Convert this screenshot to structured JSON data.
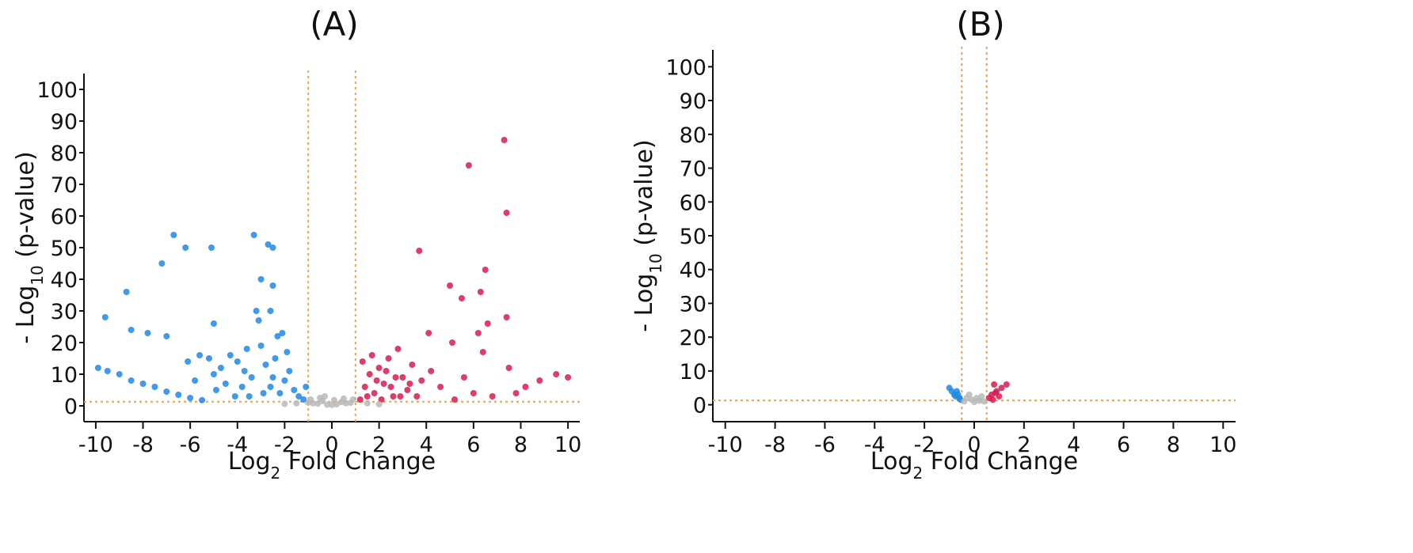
{
  "colors": {
    "up": "#d81b50",
    "down": "#1e88e5",
    "ns": "#b8b8b8",
    "threshold": "#f5a04a",
    "axis": "#111111"
  },
  "chart_data": [
    {
      "type": "scatter",
      "title": "(A)",
      "xlabel": "Log2 Fold Change",
      "ylabel": "- Log10 (p-value)",
      "xlim": [
        -10.5,
        10.5
      ],
      "ylim": [
        -5,
        105
      ],
      "xticks": [
        -10,
        -8,
        -6,
        -4,
        -2,
        0,
        2,
        4,
        6,
        8,
        10
      ],
      "yticks": [
        0,
        10,
        20,
        30,
        40,
        50,
        60,
        70,
        80,
        90,
        100
      ],
      "thresholds": {
        "x": [
          -1,
          1
        ],
        "y": 1.3
      },
      "series": [
        {
          "key": "down",
          "points": [
            [
              -9.6,
              28
            ],
            [
              -8.7,
              36
            ],
            [
              -8.5,
              24
            ],
            [
              -7.8,
              23
            ],
            [
              -7.2,
              45
            ],
            [
              -7.0,
              22
            ],
            [
              -6.7,
              54
            ],
            [
              -6.2,
              50
            ],
            [
              -5.1,
              50
            ],
            [
              -5.0,
              26
            ],
            [
              -3.3,
              54
            ],
            [
              -3.0,
              40
            ],
            [
              -2.7,
              51
            ],
            [
              -2.5,
              50
            ],
            [
              -2.5,
              38
            ],
            [
              -3.2,
              30
            ],
            [
              -3.1,
              27
            ],
            [
              -2.6,
              30
            ],
            [
              -2.3,
              22
            ],
            [
              -2.1,
              23
            ],
            [
              -9.9,
              12
            ],
            [
              -9.5,
              11
            ],
            [
              -9.0,
              10
            ],
            [
              -8.5,
              8
            ],
            [
              -8.0,
              7
            ],
            [
              -7.5,
              6
            ],
            [
              -7.0,
              4.5
            ],
            [
              -6.5,
              3.5
            ],
            [
              -6.0,
              2.5
            ],
            [
              -5.5,
              1.8
            ],
            [
              -5.2,
              15
            ],
            [
              -5.0,
              10
            ],
            [
              -4.7,
              12
            ],
            [
              -4.5,
              7
            ],
            [
              -4.3,
              16
            ],
            [
              -4.0,
              14
            ],
            [
              -3.8,
              6
            ],
            [
              -3.6,
              18
            ],
            [
              -3.4,
              9
            ],
            [
              -3.0,
              19
            ],
            [
              -2.8,
              13
            ],
            [
              -2.6,
              6
            ],
            [
              -2.4,
              15
            ],
            [
              -2.2,
              4
            ],
            [
              -2.0,
              8
            ],
            [
              -1.8,
              11
            ],
            [
              -1.6,
              5
            ],
            [
              -1.4,
              3
            ],
            [
              -1.2,
              2
            ],
            [
              -1.1,
              6
            ],
            [
              -6.1,
              14
            ],
            [
              -5.8,
              8
            ],
            [
              -5.6,
              16
            ],
            [
              -4.9,
              5
            ],
            [
              -4.1,
              3
            ],
            [
              -3.7,
              11
            ],
            [
              -3.5,
              3
            ],
            [
              -2.9,
              4
            ],
            [
              -2.5,
              9
            ],
            [
              -1.9,
              17
            ]
          ]
        },
        {
          "key": "up",
          "points": [
            [
              7.3,
              84
            ],
            [
              5.8,
              76
            ],
            [
              7.4,
              61
            ],
            [
              3.7,
              49
            ],
            [
              6.5,
              43
            ],
            [
              5.0,
              38
            ],
            [
              6.3,
              36
            ],
            [
              5.5,
              34
            ],
            [
              7.4,
              28
            ],
            [
              6.6,
              26
            ],
            [
              4.1,
              23
            ],
            [
              6.2,
              23
            ],
            [
              5.1,
              20
            ],
            [
              6.4,
              17
            ],
            [
              7.5,
              12
            ],
            [
              9.5,
              10
            ],
            [
              10.0,
              9
            ],
            [
              8.8,
              8
            ],
            [
              8.2,
              6
            ],
            [
              7.8,
              4
            ],
            [
              1.2,
              2
            ],
            [
              1.4,
              6
            ],
            [
              1.6,
              10
            ],
            [
              1.8,
              4
            ],
            [
              2.0,
              12
            ],
            [
              2.2,
              7
            ],
            [
              2.4,
              15
            ],
            [
              2.6,
              3
            ],
            [
              2.8,
              18
            ],
            [
              3.0,
              9
            ],
            [
              3.2,
              5
            ],
            [
              3.4,
              13
            ],
            [
              3.6,
              3
            ],
            [
              3.8,
              8
            ],
            [
              4.2,
              11
            ],
            [
              4.6,
              6
            ],
            [
              5.2,
              2
            ],
            [
              5.6,
              9
            ],
            [
              6.0,
              4
            ],
            [
              6.8,
              3
            ],
            [
              1.3,
              14
            ],
            [
              1.5,
              3
            ],
            [
              1.7,
              16
            ],
            [
              1.9,
              8
            ],
            [
              2.1,
              2
            ],
            [
              2.3,
              11
            ],
            [
              2.5,
              6
            ],
            [
              2.7,
              9
            ],
            [
              2.9,
              3
            ],
            [
              3.3,
              7
            ]
          ]
        },
        {
          "key": "ns",
          "points": [
            [
              -1.0,
              1.0
            ],
            [
              -0.8,
              0.8
            ],
            [
              -0.6,
              0.7
            ],
            [
              -0.4,
              1.5
            ],
            [
              -0.2,
              0.4
            ],
            [
              0.0,
              0.3
            ],
            [
              0.2,
              0.5
            ],
            [
              0.4,
              1.2
            ],
            [
              0.6,
              0.8
            ],
            [
              0.8,
              1.0
            ],
            [
              -0.9,
              2
            ],
            [
              -0.5,
              2.5
            ],
            [
              0.1,
              1.8
            ],
            [
              0.5,
              2.3
            ],
            [
              0.9,
              2
            ],
            [
              -1.5,
              0.8
            ],
            [
              -2.0,
              0.6
            ],
            [
              1.5,
              0.8
            ],
            [
              2.0,
              0.5
            ],
            [
              -0.3,
              3
            ]
          ]
        }
      ]
    },
    {
      "type": "scatter",
      "title": "(B)",
      "xlabel": "Log2 Fold Change",
      "ylabel": "- Log10 (p-value)",
      "xlim": [
        -10.5,
        10.5
      ],
      "ylim": [
        -5,
        105
      ],
      "xticks": [
        -10,
        -8,
        -6,
        -4,
        -2,
        0,
        2,
        4,
        6,
        8,
        10
      ],
      "yticks": [
        0,
        10,
        20,
        30,
        40,
        50,
        60,
        70,
        80,
        90,
        100
      ],
      "thresholds": {
        "x": [
          -0.5,
          0.5
        ],
        "y": 1.3
      },
      "series": [
        {
          "key": "down",
          "points": [
            [
              -1.0,
              5
            ],
            [
              -0.9,
              4
            ],
            [
              -0.8,
              3
            ],
            [
              -0.7,
              4
            ],
            [
              -0.6,
              2
            ],
            [
              -0.65,
              3
            ],
            [
              -0.55,
              1.5
            ],
            [
              -0.75,
              2.5
            ]
          ]
        },
        {
          "key": "up",
          "points": [
            [
              1.3,
              6
            ],
            [
              1.1,
              5
            ],
            [
              0.9,
              4
            ],
            [
              0.8,
              6
            ],
            [
              0.7,
              3
            ],
            [
              0.6,
              2
            ],
            [
              1.0,
              2.5
            ],
            [
              0.75,
              1.5
            ],
            [
              0.85,
              3.5
            ]
          ]
        },
        {
          "key": "ns",
          "points": [
            [
              -0.4,
              1
            ],
            [
              -0.3,
              2
            ],
            [
              -0.2,
              3
            ],
            [
              -0.1,
              1.5
            ],
            [
              0.0,
              0.8
            ],
            [
              0.1,
              2
            ],
            [
              0.2,
              1.2
            ],
            [
              0.3,
              2.5
            ],
            [
              0.4,
              1
            ]
          ]
        }
      ]
    }
  ]
}
